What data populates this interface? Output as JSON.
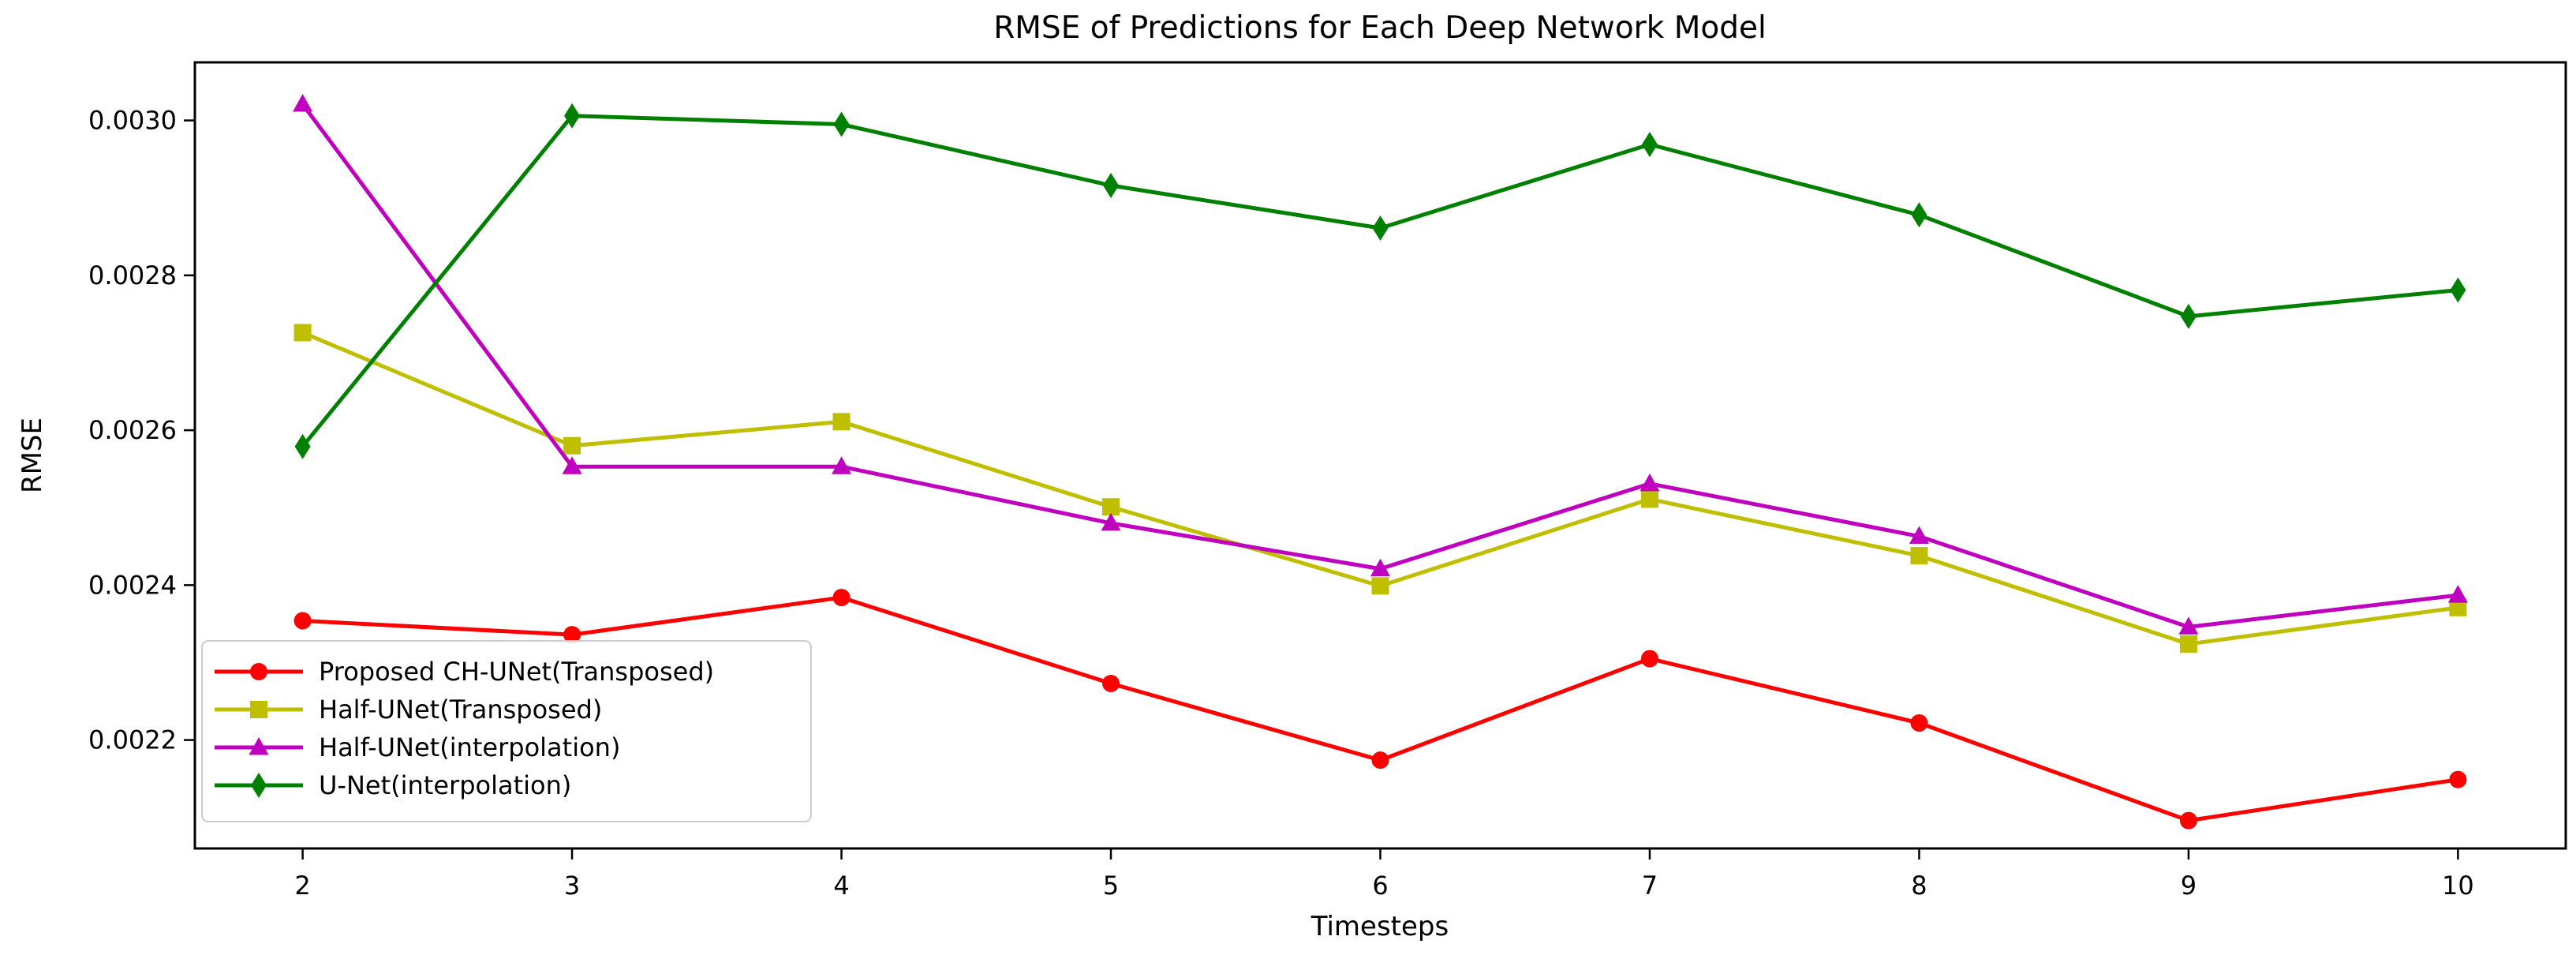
{
  "chart_data": {
    "type": "line",
    "title": "RMSE of Predictions for Each Deep Network Model",
    "xlabel": "Timesteps",
    "ylabel": "RMSE",
    "grid": false,
    "legend_position": "lower left",
    "x": [
      2,
      3,
      4,
      5,
      6,
      7,
      8,
      9,
      10
    ],
    "x_tick_labels": [
      "2",
      "3",
      "4",
      "5",
      "6",
      "7",
      "8",
      "9",
      "10"
    ],
    "y_ticks": [
      0.0022,
      0.0024,
      0.0026,
      0.0028,
      0.003
    ],
    "y_tick_labels": [
      "0.0022",
      "0.0024",
      "0.0026",
      "0.0028",
      "0.0030"
    ],
    "xlim": [
      1.6,
      10.4
    ],
    "ylim": [
      0.00206,
      0.003075
    ],
    "series": [
      {
        "name": "Proposed CH-UNet(Transposed)",
        "color": "#ff0000",
        "marker": "circle",
        "values": [
          0.002354,
          0.002336,
          0.002384,
          0.002273,
          0.002174,
          0.002305,
          0.002222,
          0.002096,
          0.002149
        ]
      },
      {
        "name": "Half-UNet(Transposed)",
        "color": "#bfbf00",
        "marker": "square",
        "values": [
          0.002726,
          0.00258,
          0.002611,
          0.002501,
          0.002399,
          0.002511,
          0.002438,
          0.002324,
          0.002371
        ]
      },
      {
        "name": "Half-UNet(interpolation)",
        "color": "#bf00bf",
        "marker": "triangle-up",
        "values": [
          0.003021,
          0.002553,
          0.002553,
          0.00248,
          0.002421,
          0.002531,
          0.002463,
          0.002346,
          0.002387
        ]
      },
      {
        "name": "U-Net(interpolation)",
        "color": "#008000",
        "marker": "diamond-thin",
        "values": [
          0.002579,
          0.003006,
          0.002995,
          0.002916,
          0.002861,
          0.002969,
          0.002878,
          0.002747,
          0.002781
        ]
      }
    ]
  }
}
